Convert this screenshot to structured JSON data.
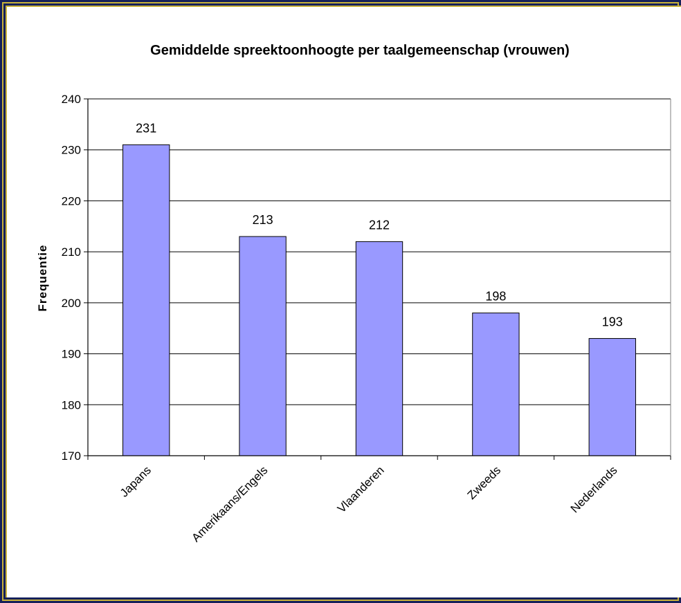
{
  "chart_data": {
    "type": "bar",
    "title": "Gemiddelde spreektoonhoogte per taalgemeenschap (vrouwen)",
    "xlabel": "",
    "ylabel": "Frequentie",
    "categories": [
      "Japans",
      "Amerikaans/Engels",
      "Vlaanderen",
      "Zweeds",
      "Nederlands"
    ],
    "values": [
      231,
      213,
      212,
      198,
      193
    ],
    "value_labels": [
      "231",
      "213",
      "212",
      "198",
      "193"
    ],
    "ylim": [
      170,
      240
    ],
    "yticks": [
      170,
      180,
      190,
      200,
      210,
      220,
      230,
      240
    ],
    "grid": true,
    "legend": "none",
    "colors": {
      "bar": "#9999ff",
      "frame": "#15205a",
      "border": "#c9b23a"
    }
  }
}
